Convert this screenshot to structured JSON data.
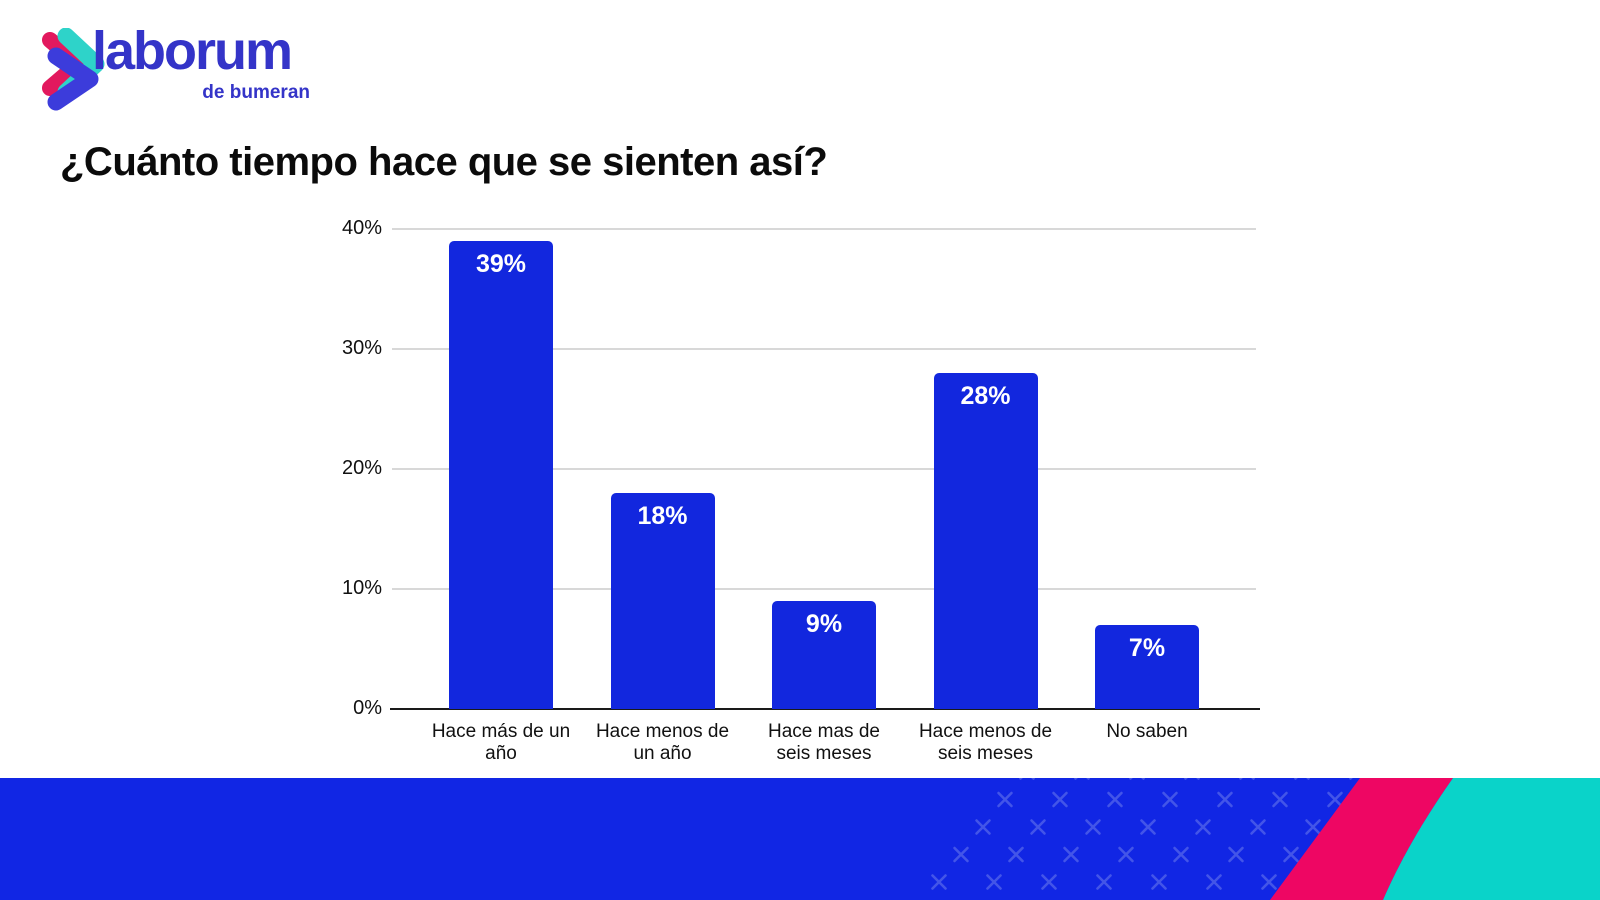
{
  "logo": {
    "brand": "laborum",
    "tagline": "de bumeran",
    "wordmark_color": "#3434c8",
    "icon_colors": {
      "pink": "#e2195e",
      "teal": "#2ed3c9",
      "blue": "#3c3cdb"
    }
  },
  "title": {
    "text": "¿Cuánto tiempo hace que se sienten así?",
    "color": "#0b0b0b"
  },
  "chart_data": {
    "type": "bar",
    "title": "¿Cuánto tiempo hace que se sienten así?",
    "categories": [
      "Hace más de un año",
      "Hace menos de un año",
      "Hace mas de seis meses",
      "Hace menos de seis meses",
      "No saben"
    ],
    "category_lines": [
      [
        "Hace más de un",
        "año"
      ],
      [
        "Hace menos de",
        "un año"
      ],
      [
        "Hace mas de",
        "seis meses"
      ],
      [
        "Hace menos de",
        "seis meses"
      ],
      [
        "No saben"
      ]
    ],
    "values": [
      39,
      18,
      9,
      28,
      7
    ],
    "value_labels": [
      "39%",
      "18%",
      "9%",
      "28%",
      "7%"
    ],
    "ylim": [
      0,
      40
    ],
    "yticks": [
      {
        "value": 40,
        "label": "40%"
      },
      {
        "value": 30,
        "label": "30%"
      },
      {
        "value": 20,
        "label": "20%"
      },
      {
        "value": 10,
        "label": "10%"
      },
      {
        "value": 0,
        "label": "0%"
      }
    ],
    "bar_color": "#1227de",
    "value_label_color": "#ffffff",
    "gridline_color": "#d8d8d8",
    "axis_line_color": "#1a1a1a",
    "grid": true,
    "legend": "none"
  },
  "footer_banner": {
    "blue": "#1126e4",
    "pink": "#ee0663",
    "teal": "#0ad3c9",
    "x_mark_color": "#5061ea",
    "decoration": "diagonal x-pattern"
  }
}
